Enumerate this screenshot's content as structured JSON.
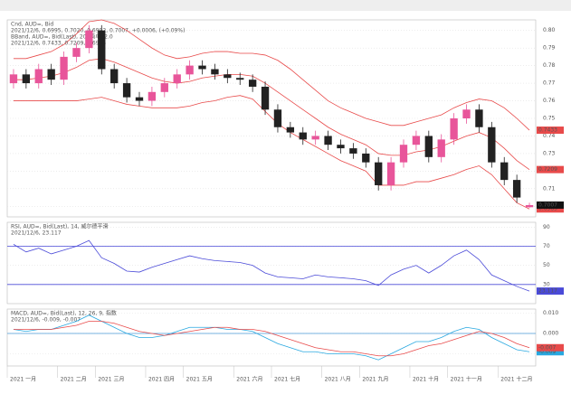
{
  "chart_data": [
    {
      "type": "candlestick",
      "title": "Cnd, AUD=, Bid",
      "subtitle": "2021/12/6, 0.6995, 0.7020, 0.6992, 0.7007, +0.0006, (+0.09%)",
      "categories": [
        "2021 一月",
        null,
        null,
        null,
        "2021 二月",
        null,
        null,
        "2021 三月",
        null,
        null,
        null,
        "2021 四月",
        null,
        null,
        "2021 五月",
        null,
        null,
        null,
        "2021 六月",
        null,
        null,
        "2021 七月",
        null,
        null,
        null,
        "2021 八月",
        null,
        null,
        "2021 九月",
        null,
        null,
        null,
        "2021 十月",
        null,
        null,
        "2021 十一月",
        null,
        null,
        null,
        "2021 十二月",
        null,
        null
      ],
      "open": [
        0.77,
        0.775,
        0.77,
        0.778,
        0.772,
        0.785,
        0.79,
        0.8,
        0.778,
        0.77,
        0.762,
        0.76,
        0.765,
        0.77,
        0.775,
        0.78,
        0.778,
        0.775,
        0.773,
        0.772,
        0.768,
        0.755,
        0.745,
        0.742,
        0.738,
        0.74,
        0.735,
        0.733,
        0.73,
        0.725,
        0.712,
        0.725,
        0.735,
        0.74,
        0.728,
        0.738,
        0.75,
        0.755,
        0.745,
        0.725,
        0.715,
        0.6995
      ],
      "high": [
        0.778,
        0.778,
        0.781,
        0.781,
        0.788,
        0.793,
        0.803,
        0.803,
        0.781,
        0.773,
        0.765,
        0.768,
        0.773,
        0.778,
        0.783,
        0.783,
        0.781,
        0.778,
        0.776,
        0.775,
        0.771,
        0.758,
        0.748,
        0.745,
        0.743,
        0.743,
        0.738,
        0.736,
        0.733,
        0.728,
        0.728,
        0.738,
        0.743,
        0.743,
        0.741,
        0.753,
        0.758,
        0.758,
        0.748,
        0.728,
        0.718,
        0.702
      ],
      "low": [
        0.767,
        0.767,
        0.767,
        0.769,
        0.769,
        0.782,
        0.787,
        0.775,
        0.767,
        0.759,
        0.757,
        0.757,
        0.762,
        0.767,
        0.772,
        0.775,
        0.772,
        0.77,
        0.769,
        0.765,
        0.752,
        0.742,
        0.739,
        0.735,
        0.735,
        0.732,
        0.73,
        0.727,
        0.722,
        0.709,
        0.709,
        0.722,
        0.732,
        0.725,
        0.725,
        0.735,
        0.747,
        0.742,
        0.722,
        0.712,
        0.702,
        0.6992
      ],
      "close": [
        0.775,
        0.77,
        0.778,
        0.772,
        0.785,
        0.79,
        0.8,
        0.778,
        0.77,
        0.762,
        0.76,
        0.765,
        0.77,
        0.775,
        0.78,
        0.778,
        0.775,
        0.773,
        0.772,
        0.768,
        0.755,
        0.745,
        0.742,
        0.738,
        0.74,
        0.735,
        0.733,
        0.73,
        0.725,
        0.712,
        0.725,
        0.735,
        0.74,
        0.728,
        0.738,
        0.75,
        0.755,
        0.745,
        0.725,
        0.715,
        0.705,
        0.7007
      ],
      "up_color": "#e8559a",
      "down_color": "#222222",
      "overlay": {
        "title": "BBand, AUD=, Bid(Last), 20, 简单, 2.0",
        "subtitle": "2021/12/6, 0.7433, 0.7209, 0.6985",
        "series": [
          {
            "color": "#e84a4a",
            "values": [
              0.784,
              0.784,
              0.786,
              0.788,
              0.792,
              0.798,
              0.805,
              0.806,
              0.804,
              0.8,
              0.795,
              0.79,
              0.786,
              0.784,
              0.785,
              0.787,
              0.788,
              0.788,
              0.787,
              0.787,
              0.786,
              0.783,
              0.778,
              0.772,
              0.766,
              0.76,
              0.756,
              0.753,
              0.75,
              0.748,
              0.746,
              0.746,
              0.748,
              0.75,
              0.752,
              0.756,
              0.759,
              0.761,
              0.76,
              0.756,
              0.75,
              0.7433
            ]
          },
          {
            "color": "#e84a4a",
            "values": [
              0.772,
              0.772,
              0.773,
              0.774,
              0.776,
              0.779,
              0.783,
              0.784,
              0.782,
              0.779,
              0.776,
              0.773,
              0.771,
              0.77,
              0.771,
              0.773,
              0.774,
              0.775,
              0.775,
              0.774,
              0.77,
              0.765,
              0.76,
              0.755,
              0.75,
              0.745,
              0.741,
              0.738,
              0.735,
              0.73,
              0.729,
              0.729,
              0.731,
              0.732,
              0.734,
              0.737,
              0.74,
              0.742,
              0.739,
              0.733,
              0.726,
              0.7209
            ]
          },
          {
            "color": "#e84a4a",
            "values": [
              0.76,
              0.76,
              0.76,
              0.76,
              0.76,
              0.76,
              0.761,
              0.762,
              0.76,
              0.758,
              0.757,
              0.756,
              0.756,
              0.756,
              0.757,
              0.759,
              0.76,
              0.762,
              0.763,
              0.761,
              0.754,
              0.747,
              0.742,
              0.738,
              0.734,
              0.73,
              0.726,
              0.723,
              0.72,
              0.712,
              0.712,
              0.712,
              0.714,
              0.714,
              0.716,
              0.718,
              0.721,
              0.723,
              0.718,
              0.71,
              0.702,
              0.6985
            ]
          }
        ]
      },
      "ylim": [
        0.694,
        0.806
      ],
      "yticks": [
        {
          "value": 0.7,
          "label": "0.70"
        },
        {
          "value": 0.71,
          "label": "0.71"
        },
        {
          "value": 0.72,
          "label": "0.72"
        },
        {
          "value": 0.73,
          "label": "0.73"
        },
        {
          "value": 0.74,
          "label": "0.74"
        },
        {
          "value": 0.75,
          "label": "0.75"
        },
        {
          "value": 0.76,
          "label": "0.76"
        },
        {
          "value": 0.77,
          "label": "0.77"
        },
        {
          "value": 0.78,
          "label": "0.78"
        },
        {
          "value": 0.79,
          "label": "0.79"
        },
        {
          "value": 0.8,
          "label": "0.80"
        }
      ],
      "grid": true
    },
    {
      "type": "line",
      "title": "RSI, AUD=, Bid(Last), 14, 威尔德平滑",
      "subtitle": "2021/12/6, 23.117",
      "series": [
        {
          "color": "#4a4ad8",
          "values": [
            72,
            64,
            68,
            62,
            66,
            70,
            76,
            58,
            52,
            44,
            43,
            48,
            52,
            56,
            60,
            57,
            55,
            54,
            53,
            50,
            42,
            38,
            37,
            36,
            40,
            38,
            37,
            36,
            34,
            29,
            40,
            46,
            50,
            42,
            50,
            60,
            66,
            56,
            40,
            34,
            28,
            23.117
          ]
        }
      ],
      "levels": [
        70,
        30
      ],
      "level_color": "#4a4ad8",
      "ylim": [
        10,
        95
      ],
      "yticks": [
        30,
        50,
        70,
        90
      ],
      "grid": true
    },
    {
      "type": "line",
      "title": "MACD, AUD=, Bid(Last), 12, 26, 9, 指数",
      "subtitle": "2021/12/6, -0.009, -0.007",
      "series": [
        {
          "color": "#29a8e0",
          "values": [
            0.002,
            0.001,
            0.002,
            0.002,
            0.004,
            0.006,
            0.009,
            0.006,
            0.003,
            0.0,
            -0.002,
            -0.002,
            -0.001,
            0.001,
            0.003,
            0.003,
            0.003,
            0.002,
            0.002,
            0.001,
            -0.002,
            -0.005,
            -0.007,
            -0.009,
            -0.009,
            -0.01,
            -0.01,
            -0.01,
            -0.011,
            -0.013,
            -0.01,
            -0.007,
            -0.004,
            -0.004,
            -0.002,
            0.001,
            0.003,
            0.002,
            -0.002,
            -0.005,
            -0.008,
            -0.009
          ]
        },
        {
          "color": "#e84a4a",
          "values": [
            0.002,
            0.002,
            0.002,
            0.002,
            0.003,
            0.004,
            0.006,
            0.006,
            0.005,
            0.003,
            0.001,
            0.0,
            -0.001,
            0.0,
            0.001,
            0.002,
            0.003,
            0.003,
            0.002,
            0.002,
            0.001,
            -0.001,
            -0.003,
            -0.005,
            -0.007,
            -0.008,
            -0.009,
            -0.009,
            -0.01,
            -0.011,
            -0.011,
            -0.01,
            -0.008,
            -0.006,
            -0.005,
            -0.003,
            -0.001,
            0.001,
            0.0,
            -0.002,
            -0.005,
            -0.007
          ]
        }
      ],
      "levels": [
        0
      ],
      "level_color": "#4a9ad8",
      "ylim": [
        -0.016,
        0.012
      ],
      "yticks": [
        {
          "value": -0.01,
          "label": "-0.010"
        },
        {
          "value": 0,
          "label": "0.000"
        },
        {
          "value": 0.01,
          "label": "0.010"
        }
      ],
      "grid": true
    }
  ]
}
